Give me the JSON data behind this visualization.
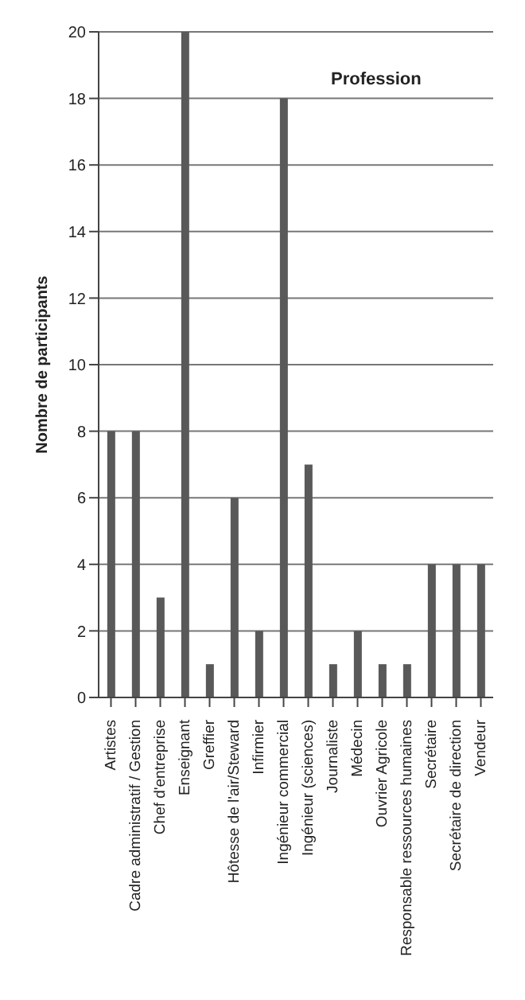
{
  "chart_data": {
    "type": "bar",
    "title": "Profession",
    "ylabel": "Nombre de participants",
    "categories": [
      "Artistes",
      "Cadre administratif / Gestion",
      "Chef d'entreprise",
      "Enseignant",
      "Greffier",
      "Hôtesse de l'air/Steward",
      "Infirmier",
      "Ingénieur commercial",
      "Ingénieur (sciences)",
      "Journaliste",
      "Médecin",
      "Ouvrier Agricole",
      "Responsable ressources humaines",
      "Secrétaire",
      "Secrétaire de direction",
      "Vendeur"
    ],
    "values": [
      8,
      8,
      3,
      20,
      1,
      6,
      2,
      18,
      7,
      1,
      2,
      1,
      1,
      4,
      4,
      4
    ],
    "color": "#595959",
    "ylim": [
      0,
      20
    ],
    "yticks": [
      0,
      2,
      4,
      6,
      8,
      10,
      12,
      14,
      16,
      18,
      20
    ],
    "grid": "y"
  }
}
